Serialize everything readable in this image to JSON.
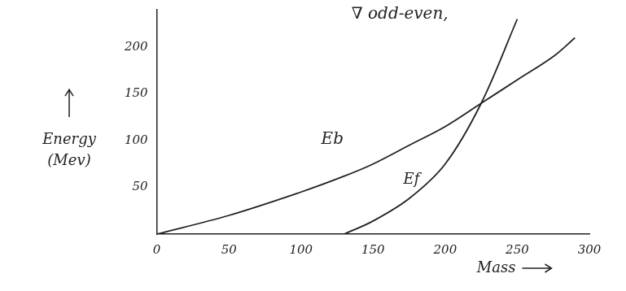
{
  "chart_data": {
    "type": "line",
    "xlabel": "Mass",
    "ylabel": "Energy (Mev)",
    "annotations": [
      "∇ odd-even,",
      "Eb",
      "Ef"
    ],
    "x": [
      0,
      50,
      100,
      130,
      150,
      175,
      200,
      225,
      250,
      275,
      290
    ],
    "series": [
      {
        "name": "Eb",
        "color": "#222222",
        "values": [
          0,
          20,
          45,
          62,
          75,
          95,
          115,
          140,
          165,
          190,
          210
        ]
      },
      {
        "name": "Ef",
        "color": "#222222",
        "values": [
          null,
          null,
          null,
          0,
          14,
          38,
          75,
          140,
          230,
          null,
          null
        ]
      }
    ],
    "xlim": [
      0,
      300
    ],
    "xticks": [
      0,
      50,
      100,
      150,
      200,
      250,
      300
    ],
    "ylim": [
      0,
      240
    ],
    "yticks": [
      50,
      100,
      150,
      200
    ],
    "grid": false
  }
}
